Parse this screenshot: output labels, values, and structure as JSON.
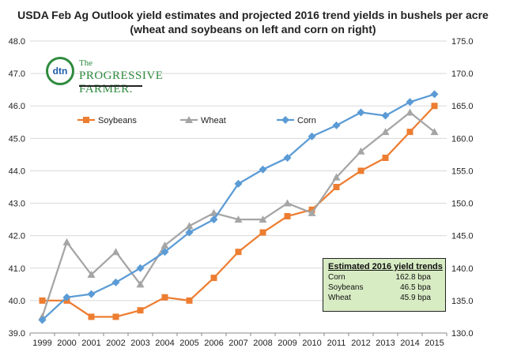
{
  "title": "USDA Feb Ag Outlook yield estimates and projected 2016 trend yields in bushels per acre (wheat and soybeans on left and corn on right)",
  "logo": {
    "mark": "dtn",
    "line1": "The",
    "line2": "PROGRESSIVE FARMER."
  },
  "estimates_box": {
    "title": "Estimated 2016 yield trends",
    "rows": [
      {
        "crop": "Corn",
        "value": "162.8 bpa"
      },
      {
        "crop": "Soybeans",
        "value": "46.5 bpa"
      },
      {
        "crop": "Wheat",
        "value": "45.9 bpa"
      }
    ]
  },
  "chart_data": {
    "type": "line",
    "title": "USDA Feb Ag Outlook yield estimates and projected 2016 trend yields in bushels per acre (wheat and soybeans on left and corn on right)",
    "categories": [
      "1999",
      "2000",
      "2001",
      "2002",
      "2003",
      "2004",
      "2005",
      "2006",
      "2007",
      "2008",
      "2009",
      "2010",
      "2011",
      "2012",
      "2013",
      "2014",
      "2015"
    ],
    "y_left": {
      "min": 39.0,
      "max": 48.0,
      "step": 1.0,
      "ticks": [
        "39.0",
        "40.0",
        "41.0",
        "42.0",
        "43.0",
        "44.0",
        "45.0",
        "46.0",
        "47.0",
        "48.0"
      ]
    },
    "y_right": {
      "min": 130.0,
      "max": 175.0,
      "step": 5.0,
      "ticks": [
        "130.0",
        "135.0",
        "140.0",
        "145.0",
        "150.0",
        "155.0",
        "160.0",
        "165.0",
        "170.0",
        "175.0"
      ]
    },
    "grid": true,
    "legend_position": "top-center",
    "series": [
      {
        "name": "Soybeans",
        "axis": "left",
        "color": "#ed7d31",
        "marker": "square",
        "values": [
          40.0,
          40.0,
          39.5,
          39.5,
          39.7,
          40.1,
          40.0,
          40.7,
          41.5,
          42.1,
          42.6,
          42.8,
          43.5,
          44.0,
          44.4,
          45.2,
          46.0
        ]
      },
      {
        "name": "Wheat",
        "axis": "left",
        "color": "#a5a5a5",
        "marker": "triangle",
        "values": [
          39.5,
          41.8,
          40.8,
          41.5,
          40.5,
          41.7,
          42.3,
          42.7,
          42.5,
          42.5,
          43.0,
          42.7,
          43.8,
          44.6,
          45.2,
          45.8,
          45.2
        ]
      },
      {
        "name": "Corn",
        "axis": "right",
        "color": "#5b9bd5",
        "marker": "diamond",
        "values": [
          132.0,
          135.5,
          136.0,
          137.8,
          140.0,
          142.5,
          145.5,
          147.5,
          153.0,
          155.2,
          157.0,
          160.3,
          162.0,
          164.0,
          163.5,
          165.6,
          166.8
        ]
      }
    ]
  }
}
